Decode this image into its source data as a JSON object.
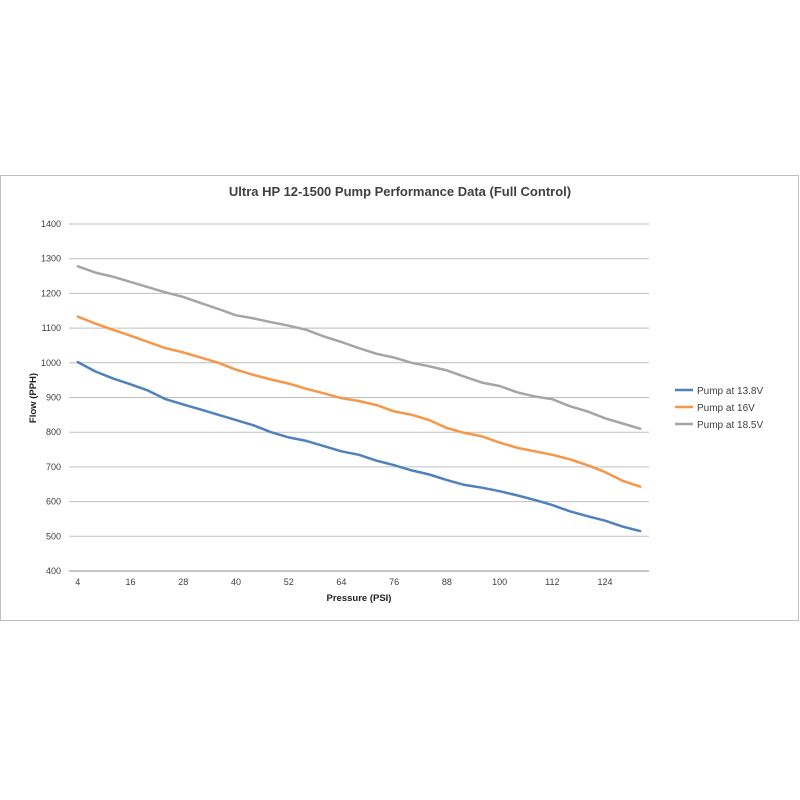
{
  "chart_data": {
    "type": "line",
    "title": "Ultra HP 12-1500  Pump Performance Data (Full Control)",
    "xlabel": "Pressure (PSI)",
    "ylabel": "Flow (PPH)",
    "x_ticks": [
      4,
      16,
      28,
      40,
      52,
      64,
      76,
      88,
      100,
      112,
      124
    ],
    "ylim": [
      400,
      1400
    ],
    "y_ticks": [
      400,
      500,
      600,
      700,
      800,
      900,
      1000,
      1100,
      1200,
      1300,
      1400
    ],
    "grid": true,
    "legend_position": "right",
    "x": [
      4,
      8,
      12,
      16,
      20,
      24,
      28,
      32,
      36,
      40,
      44,
      48,
      52,
      56,
      60,
      64,
      68,
      72,
      76,
      80,
      84,
      88,
      92,
      96,
      100,
      104,
      108,
      112,
      116,
      120,
      124,
      128,
      132
    ],
    "series": [
      {
        "name": "Pump at 13.8V",
        "color": "#4f81bd",
        "values": [
          1002,
          975,
          955,
          938,
          920,
          895,
          880,
          865,
          850,
          835,
          820,
          800,
          785,
          775,
          760,
          745,
          735,
          718,
          705,
          690,
          678,
          662,
          648,
          640,
          630,
          618,
          605,
          590,
          572,
          558,
          545,
          528,
          515
        ]
      },
      {
        "name": "Pump at 16V",
        "color": "#f79646",
        "values": [
          1133,
          1113,
          1095,
          1078,
          1060,
          1042,
          1030,
          1015,
          1000,
          980,
          965,
          952,
          940,
          925,
          912,
          898,
          890,
          878,
          860,
          850,
          835,
          812,
          798,
          788,
          770,
          755,
          745,
          735,
          722,
          705,
          685,
          660,
          643
        ]
      },
      {
        "name": "Pump at 18.5V",
        "color": "#a5a5a5",
        "values": [
          1278,
          1260,
          1248,
          1233,
          1218,
          1203,
          1190,
          1172,
          1155,
          1137,
          1128,
          1117,
          1107,
          1095,
          1076,
          1060,
          1042,
          1026,
          1015,
          1000,
          990,
          978,
          960,
          943,
          933,
          915,
          903,
          895,
          875,
          860,
          840,
          825,
          810
        ]
      }
    ]
  }
}
